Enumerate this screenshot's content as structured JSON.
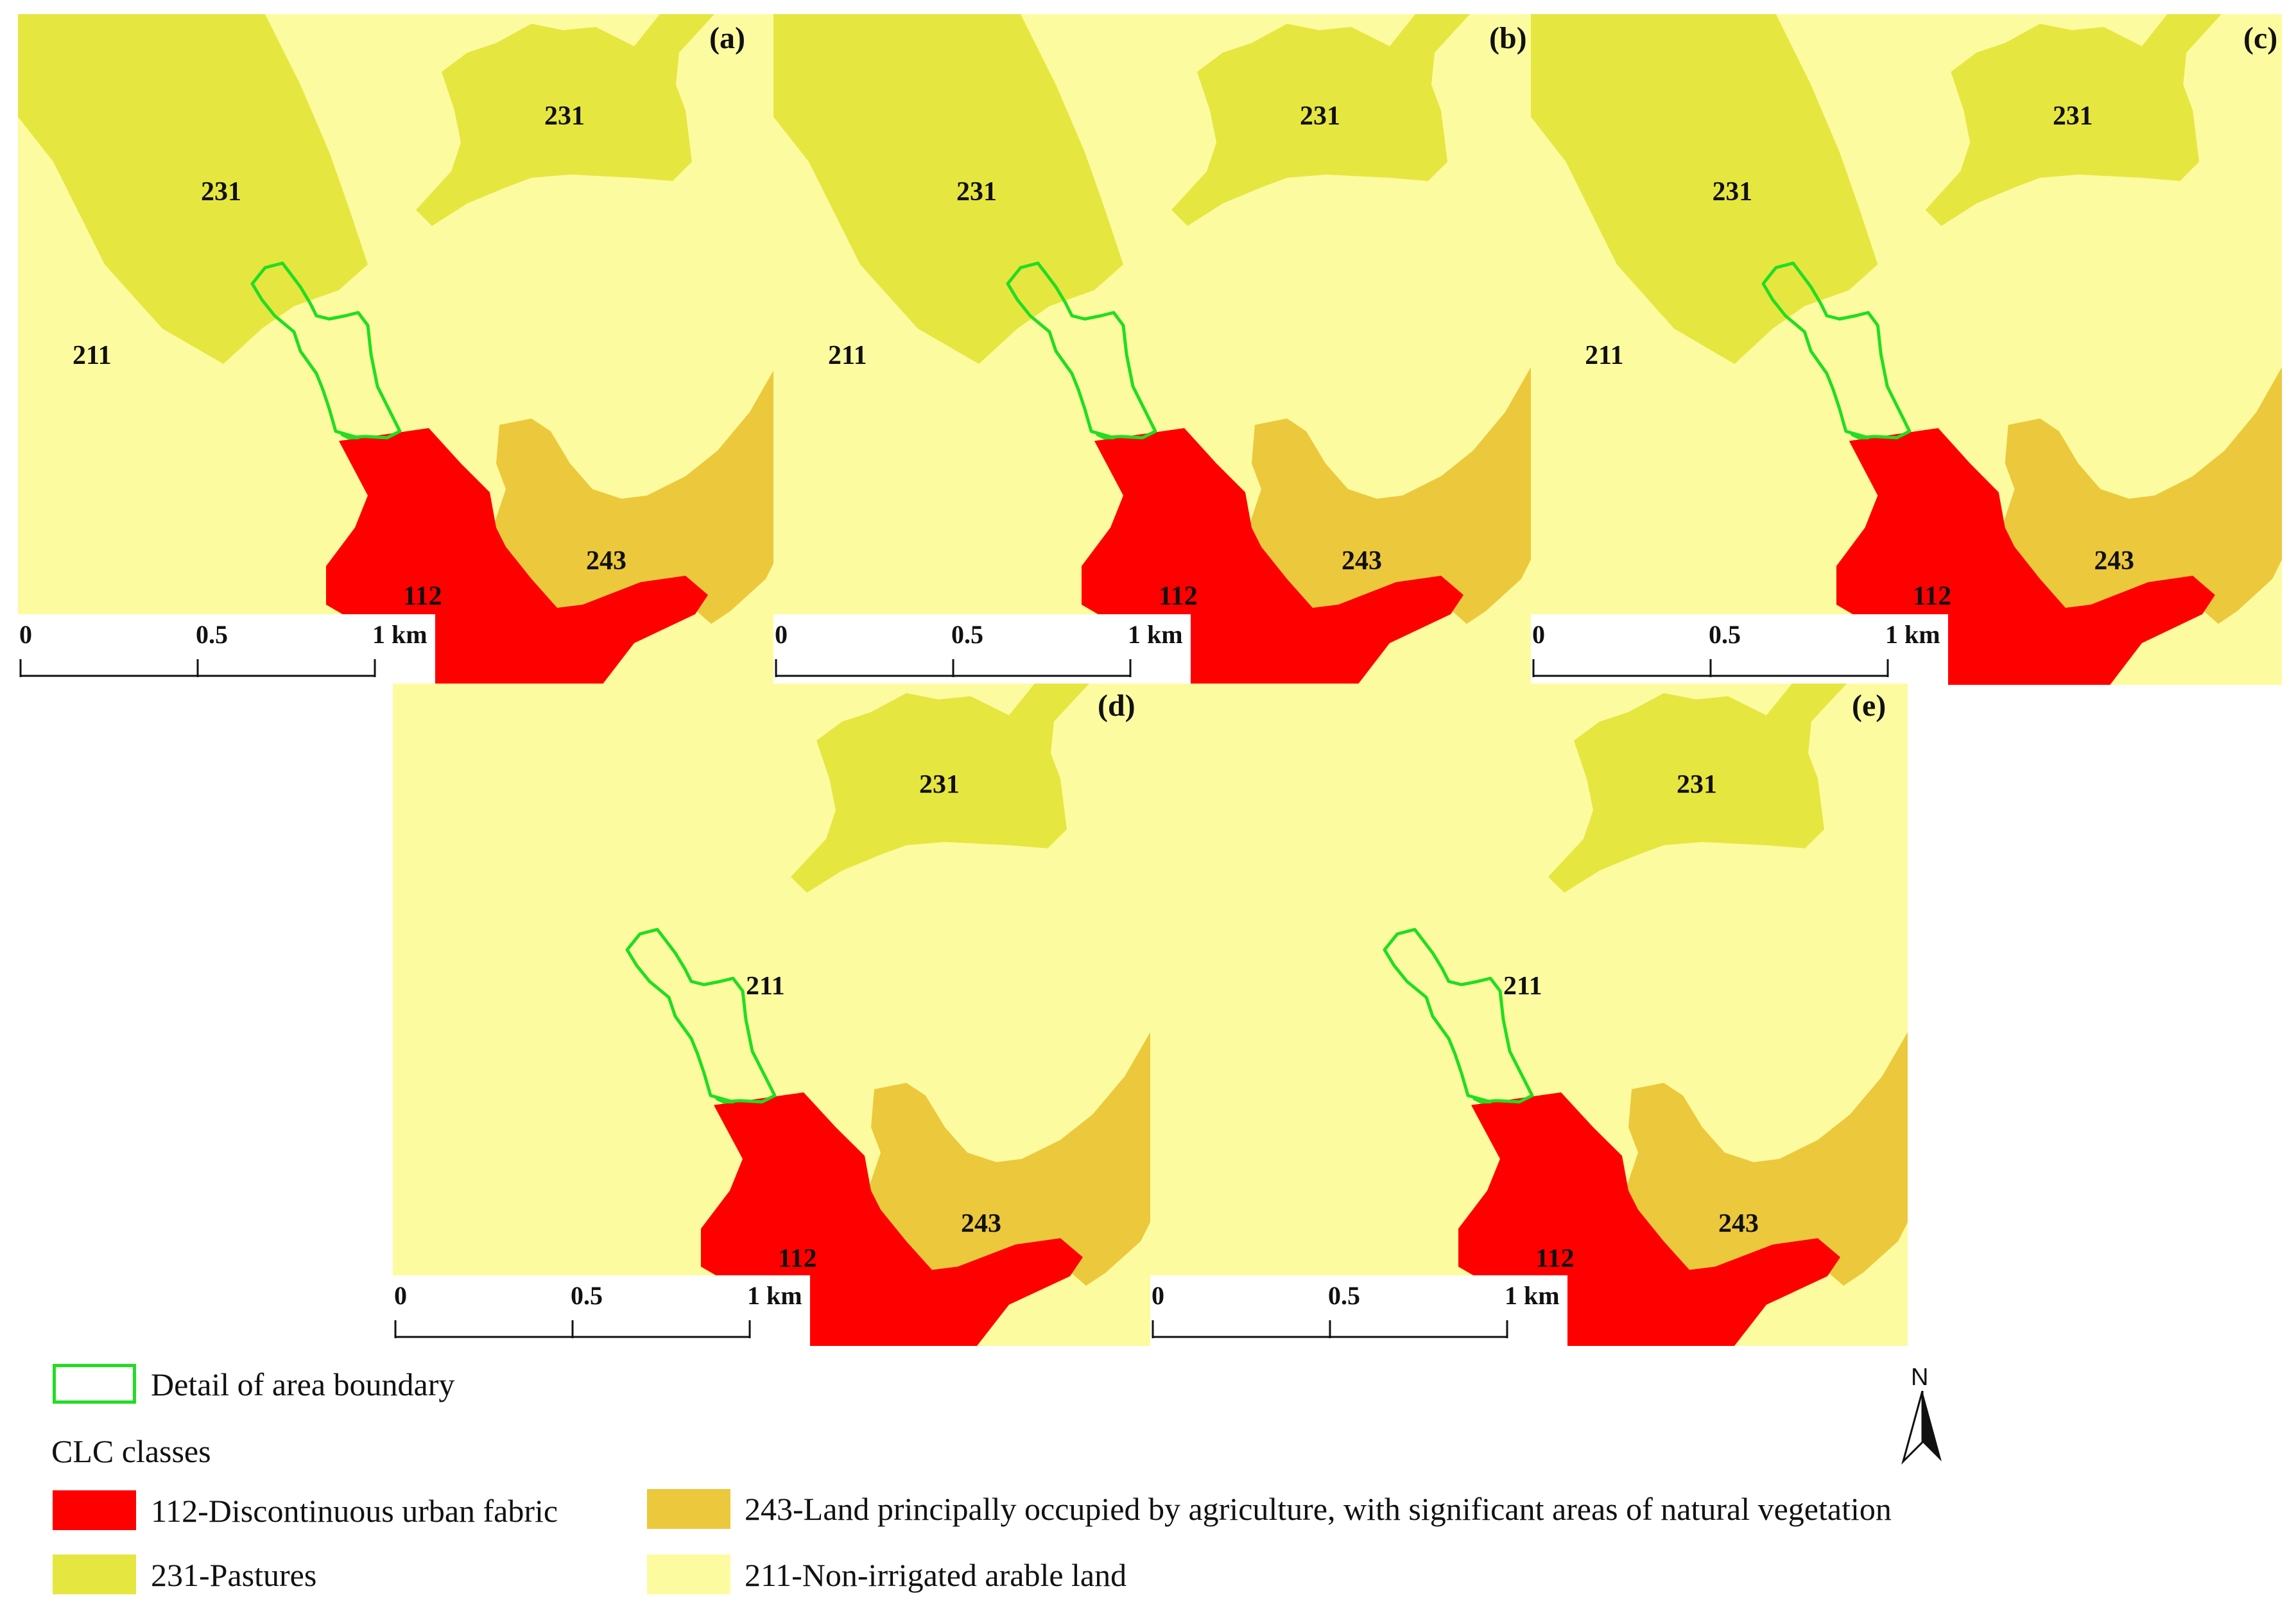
{
  "panels": [
    {
      "id": "a",
      "letter": "(a)",
      "labels": {
        "l231a": "231",
        "l231b": "231",
        "l211": "211",
        "l243": "243",
        "l112": "112"
      }
    },
    {
      "id": "b",
      "letter": "(b)",
      "labels": {
        "l231a": "231",
        "l231b": "231",
        "l211": "211",
        "l243": "243",
        "l112": "112"
      }
    },
    {
      "id": "c",
      "letter": "(c)",
      "labels": {
        "l231a": "231",
        "l231b": "231",
        "l211": "211",
        "l243": "243",
        "l112": "112"
      }
    },
    {
      "id": "d",
      "letter": "(d)",
      "labels": {
        "l231a": "231",
        "l211": "211",
        "l243": "243",
        "l112": "112"
      }
    },
    {
      "id": "e",
      "letter": "(e)",
      "labels": {
        "l231a": "231",
        "l211": "211",
        "l243": "243",
        "l112": "112"
      }
    }
  ],
  "scalebar": {
    "t0": "0",
    "t1": "0.5",
    "t2": "1 km"
  },
  "north_label": "N",
  "legend": {
    "boundary": "Detail of area boundary",
    "classes_title": "CLC classes",
    "c112": "112-Discontinuous urban fabric",
    "c231": "231-Pastures",
    "c243": "243-Land principally occupied by agriculture, with significant areas of natural vegetation",
    "c211": "211-Non-irrigated arable land"
  },
  "colors": {
    "c112": "#ff0000",
    "c231": "#e6e641",
    "c243": "#ecc83c",
    "c211": "#fdfb9f",
    "boundary": "#22dd22"
  }
}
